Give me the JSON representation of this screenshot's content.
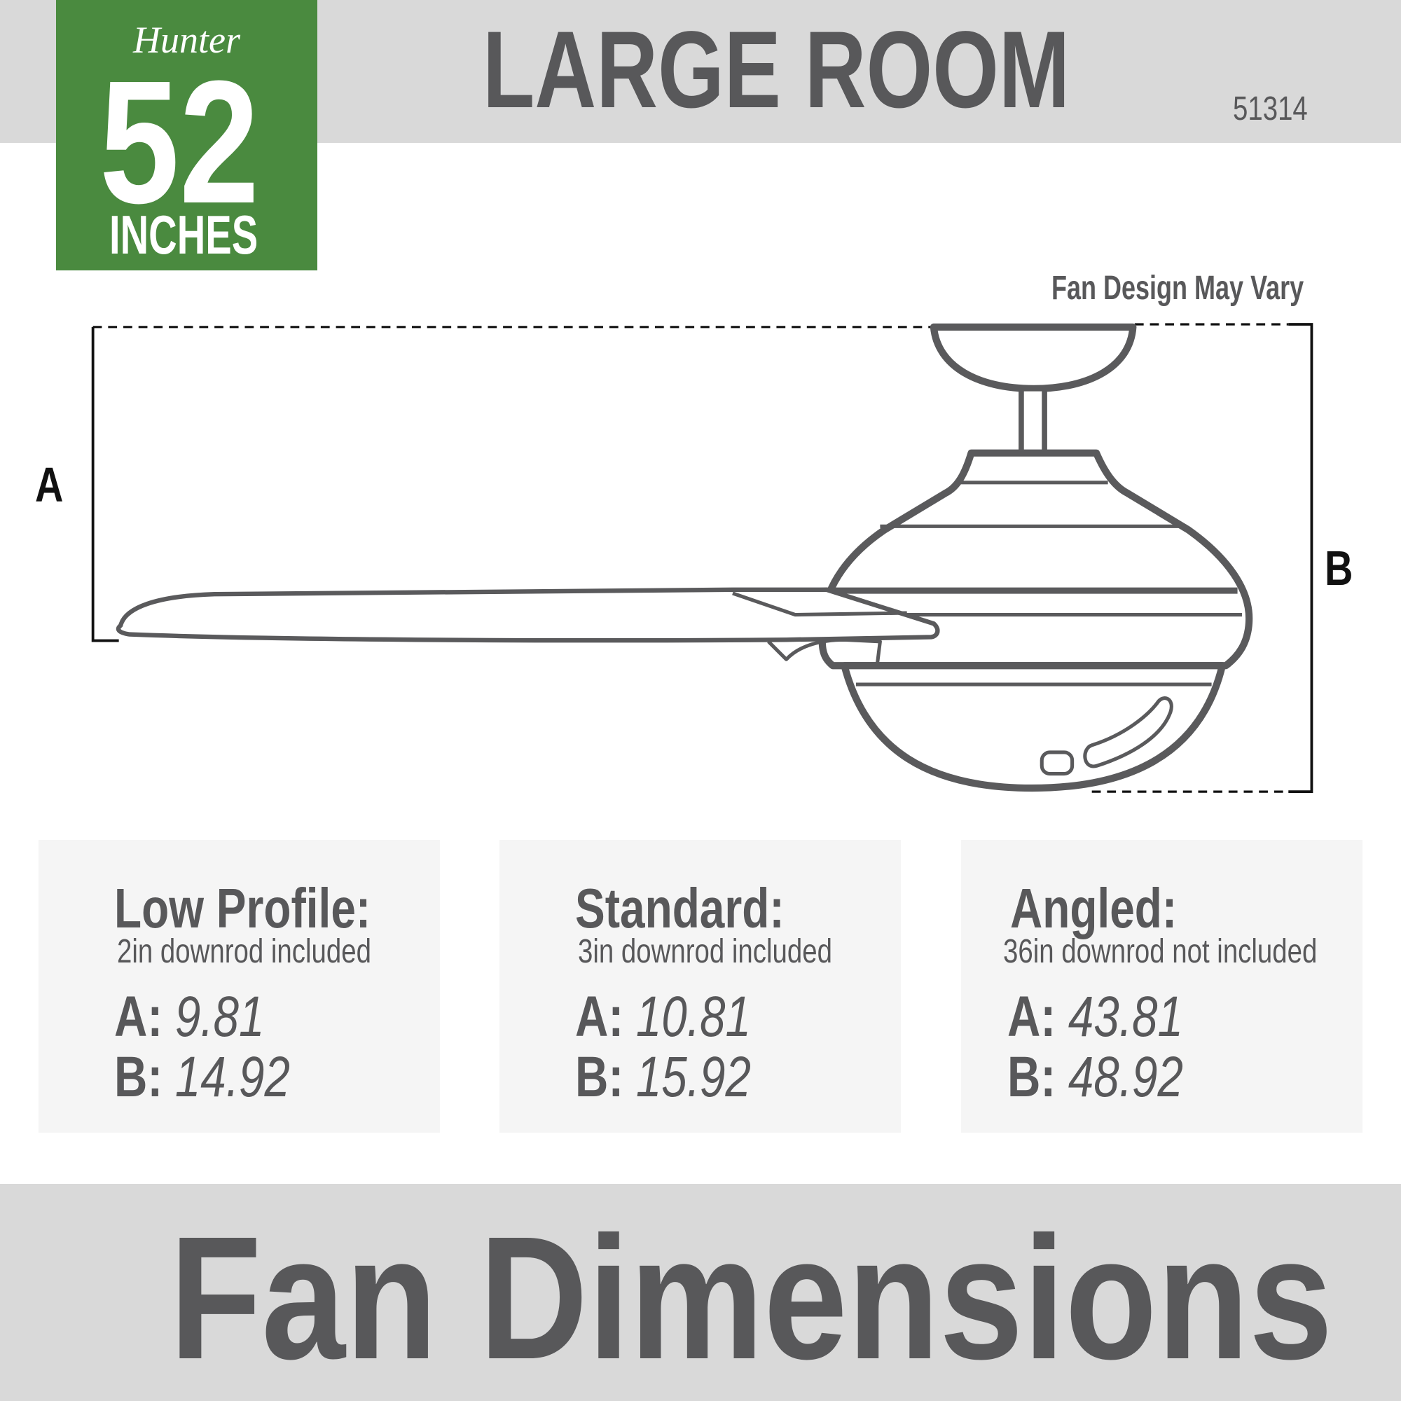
{
  "badge": {
    "brand": "Hunter",
    "size": "52",
    "unit": "INCHES",
    "color": "#4a8a3f"
  },
  "header": {
    "title": "LARGE ROOM",
    "model": "51314"
  },
  "diagram": {
    "note": "Fan Design May Vary",
    "label_a": "A",
    "label_b": "B"
  },
  "options": [
    {
      "title": "Low Profile:",
      "subtitle": "2in downrod included",
      "a_label": "A:",
      "a": "9.81",
      "b_label": "B:",
      "b": "14.92"
    },
    {
      "title": "Standard:",
      "subtitle": "3in downrod included",
      "a_label": "A:",
      "a": "10.81",
      "b_label": "B:",
      "b": "15.92"
    },
    {
      "title": "Angled:",
      "subtitle": "36in downrod not included",
      "a_label": "A:",
      "a": "43.81",
      "b_label": "B:",
      "b": "48.92"
    }
  ],
  "footer": {
    "title": "Fan Dimensions"
  },
  "colors": {
    "text": "#58585a",
    "band": "#d9d9d9",
    "panel": "#f5f5f5"
  }
}
